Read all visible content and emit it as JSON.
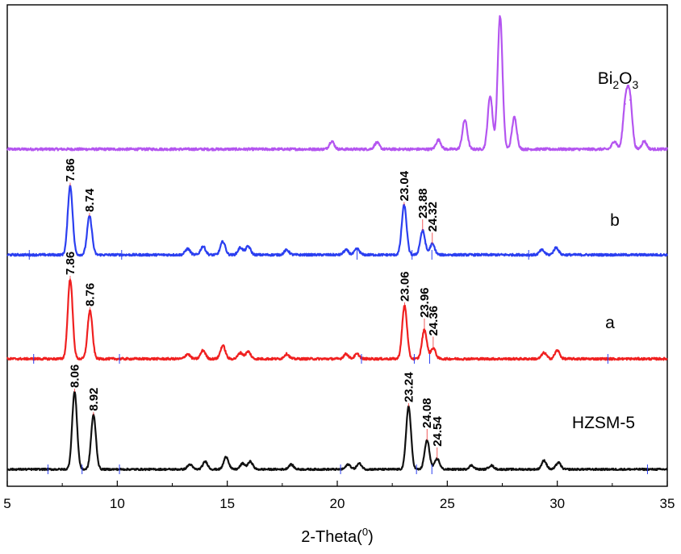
{
  "chart_data": {
    "type": "line",
    "title": "",
    "xlabel_main": "2-Theta(",
    "xlabel_sup": "0",
    "xlabel_close": ")",
    "ylabel": "",
    "xlim": [
      5,
      35
    ],
    "x_ticks": [
      "5",
      "10",
      "15",
      "20",
      "25",
      "30",
      "35"
    ],
    "grid": false,
    "legend": "none",
    "series": [
      {
        "key": "bi2o3",
        "label_main": "Bi",
        "label_sub1": "2",
        "label_mid": "O",
        "label_sub2": "3",
        "color": "#b455f0",
        "peaks": [
          {
            "x": 19.75,
            "h": 0.06
          },
          {
            "x": 21.8,
            "h": 0.05
          },
          {
            "x": 24.6,
            "h": 0.07
          },
          {
            "x": 25.8,
            "h": 0.22
          },
          {
            "x": 26.95,
            "h": 0.4
          },
          {
            "x": 27.4,
            "h": 1.0
          },
          {
            "x": 28.05,
            "h": 0.24
          },
          {
            "x": 32.6,
            "h": 0.06
          },
          {
            "x": 33.1,
            "h": 0.34
          },
          {
            "x": 33.3,
            "h": 0.37
          },
          {
            "x": 33.95,
            "h": 0.06
          }
        ],
        "peak_labels": []
      },
      {
        "key": "b",
        "label_main": "b",
        "color": "#2b3ff0",
        "peaks": [
          {
            "x": 7.86,
            "h": 0.57
          },
          {
            "x": 8.74,
            "h": 0.32
          },
          {
            "x": 13.2,
            "h": 0.05
          },
          {
            "x": 13.9,
            "h": 0.07
          },
          {
            "x": 14.8,
            "h": 0.11
          },
          {
            "x": 15.6,
            "h": 0.06
          },
          {
            "x": 15.95,
            "h": 0.07
          },
          {
            "x": 17.7,
            "h": 0.04
          },
          {
            "x": 20.4,
            "h": 0.04
          },
          {
            "x": 20.9,
            "h": 0.05
          },
          {
            "x": 23.04,
            "h": 0.41
          },
          {
            "x": 23.88,
            "h": 0.2
          },
          {
            "x": 24.32,
            "h": 0.09
          },
          {
            "x": 29.3,
            "h": 0.04
          },
          {
            "x": 29.95,
            "h": 0.06
          }
        ],
        "peak_labels": [
          "7.86",
          "8.74",
          "23.04",
          "23.88",
          "24.32"
        ]
      },
      {
        "key": "a",
        "label_main": "a",
        "color": "#f02020",
        "peaks": [
          {
            "x": 7.86,
            "h": 0.66
          },
          {
            "x": 8.76,
            "h": 0.4
          },
          {
            "x": 13.2,
            "h": 0.04
          },
          {
            "x": 13.9,
            "h": 0.07
          },
          {
            "x": 14.8,
            "h": 0.11
          },
          {
            "x": 15.6,
            "h": 0.05
          },
          {
            "x": 15.95,
            "h": 0.06
          },
          {
            "x": 17.7,
            "h": 0.04
          },
          {
            "x": 20.4,
            "h": 0.04
          },
          {
            "x": 20.9,
            "h": 0.04
          },
          {
            "x": 23.06,
            "h": 0.44
          },
          {
            "x": 23.96,
            "h": 0.24
          },
          {
            "x": 24.36,
            "h": 0.09
          },
          {
            "x": 29.4,
            "h": 0.05
          },
          {
            "x": 30.0,
            "h": 0.07
          }
        ],
        "peak_labels": [
          "7.86",
          "8.76",
          "23.06",
          "23.96",
          "24.36"
        ]
      },
      {
        "key": "hzsm5",
        "label_main": "HZSM-5",
        "color": "#111111",
        "peaks": [
          {
            "x": 8.06,
            "h": 0.8
          },
          {
            "x": 8.92,
            "h": 0.56
          },
          {
            "x": 13.3,
            "h": 0.05
          },
          {
            "x": 14.0,
            "h": 0.08
          },
          {
            "x": 14.95,
            "h": 0.13
          },
          {
            "x": 15.7,
            "h": 0.06
          },
          {
            "x": 16.05,
            "h": 0.08
          },
          {
            "x": 17.9,
            "h": 0.05
          },
          {
            "x": 20.5,
            "h": 0.05
          },
          {
            "x": 21.0,
            "h": 0.06
          },
          {
            "x": 23.24,
            "h": 0.65
          },
          {
            "x": 24.08,
            "h": 0.3
          },
          {
            "x": 24.54,
            "h": 0.11
          },
          {
            "x": 26.1,
            "h": 0.04
          },
          {
            "x": 27.0,
            "h": 0.04
          },
          {
            "x": 29.4,
            "h": 0.09
          },
          {
            "x": 30.05,
            "h": 0.07
          }
        ],
        "peak_labels": [
          "8.06",
          "8.92",
          "23.24",
          "24.08",
          "24.54"
        ]
      }
    ]
  }
}
